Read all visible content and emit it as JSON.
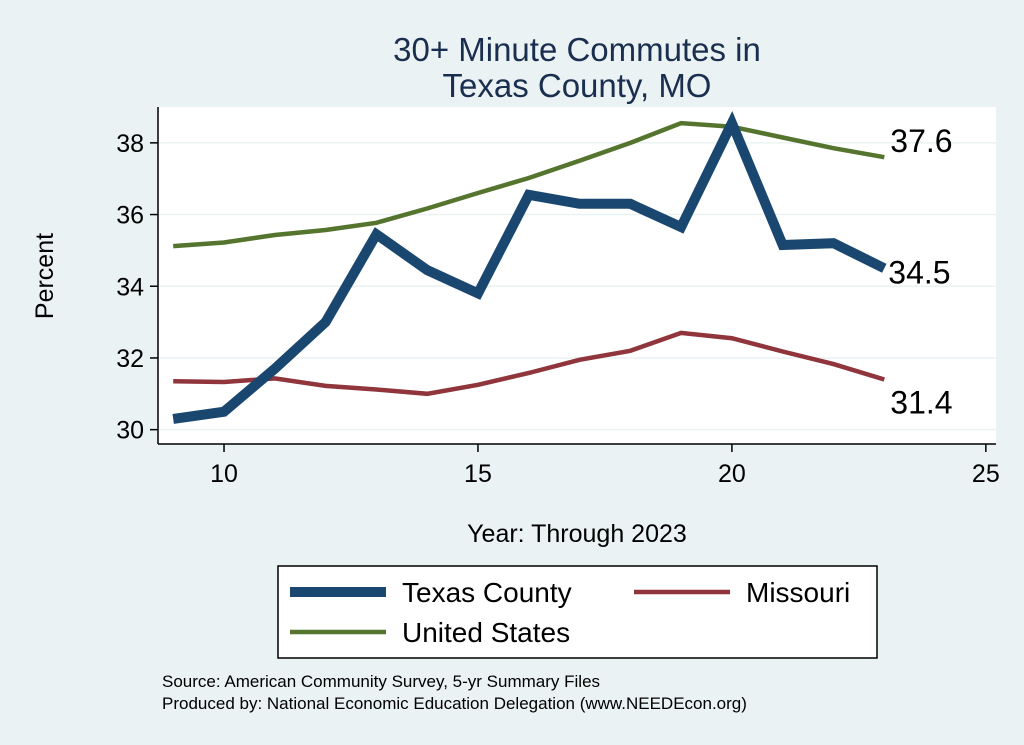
{
  "chart_data": {
    "type": "line",
    "title_lines": [
      "30+ Minute Commutes in",
      "Texas County, MO"
    ],
    "xlabel": "Year: Through 2023",
    "ylabel": "Percent",
    "xlim": [
      8.7,
      25.2
    ],
    "ylim": [
      29.6,
      39.0
    ],
    "xticks": [
      10,
      15,
      20,
      25
    ],
    "yticks": [
      30,
      32,
      34,
      36,
      38
    ],
    "grid": true,
    "legend_position": "bottom",
    "series": [
      {
        "name": "Texas County",
        "color": "#1a476f",
        "x": [
          9,
          10,
          11,
          12,
          13,
          14,
          15,
          16,
          17,
          18,
          19,
          20,
          21,
          22,
          23
        ],
        "values": [
          30.3,
          30.5,
          31.7,
          33.0,
          35.45,
          34.45,
          33.8,
          36.55,
          36.3,
          36.3,
          35.65,
          38.55,
          35.15,
          35.2,
          34.5
        ],
        "end_label": "34.5"
      },
      {
        "name": "Missouri",
        "color": "#90353b",
        "x": [
          9,
          10,
          11,
          12,
          13,
          14,
          15,
          16,
          17,
          18,
          19,
          20,
          21,
          22,
          23
        ],
        "values": [
          31.35,
          31.33,
          31.43,
          31.22,
          31.12,
          31.0,
          31.25,
          31.58,
          31.95,
          32.2,
          32.7,
          32.55,
          32.18,
          31.83,
          31.4
        ],
        "end_label": "31.4"
      },
      {
        "name": "United States",
        "color": "#55752f",
        "x": [
          9,
          10,
          11,
          12,
          13,
          14,
          15,
          16,
          17,
          18,
          19,
          20,
          21,
          22,
          23
        ],
        "values": [
          35.12,
          35.22,
          35.43,
          35.57,
          35.77,
          36.17,
          36.6,
          37.02,
          37.5,
          38.0,
          38.55,
          38.45,
          38.15,
          37.85,
          37.6
        ],
        "end_label": "37.6"
      }
    ]
  },
  "source": {
    "line1": "Source: American Community Survey, 5-yr Summary Files",
    "line2": "Produced by: National Economic Education Delegation (www.NEEDEcon.org)"
  }
}
